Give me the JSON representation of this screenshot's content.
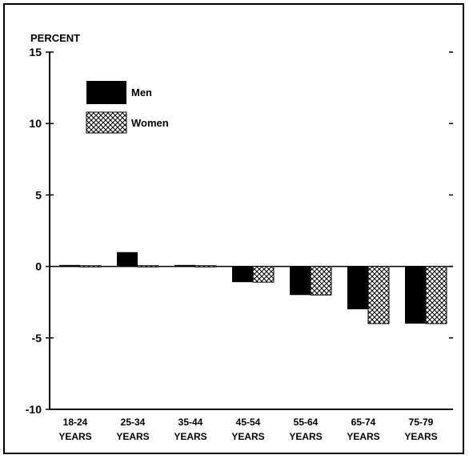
{
  "chart_data": {
    "type": "bar",
    "ylabel": "PERCENT",
    "ylim": [
      -10,
      15
    ],
    "yticks": [
      "15",
      "10",
      "5",
      "0",
      "-5",
      "-10"
    ],
    "ytick_values": [
      15,
      10,
      5,
      0,
      -5,
      -10
    ],
    "categories": [
      {
        "line1": "18-24",
        "line2": "YEARS"
      },
      {
        "line1": "25-34",
        "line2": "YEARS"
      },
      {
        "line1": "35-44",
        "line2": "YEARS"
      },
      {
        "line1": "45-54",
        "line2": "YEARS"
      },
      {
        "line1": "55-64",
        "line2": "YEARS"
      },
      {
        "line1": "65-74",
        "line2": "YEARS"
      },
      {
        "line1": "75-79",
        "line2": "YEARS"
      }
    ],
    "series": [
      {
        "name": "Men",
        "values": [
          0.1,
          1.0,
          0.1,
          -1.1,
          -2.0,
          -3.0,
          -4.0
        ],
        "fill": "#000000"
      },
      {
        "name": "Women",
        "values": [
          0.05,
          0.05,
          0.05,
          -1.1,
          -2.0,
          -4.0,
          -4.0
        ],
        "fill": "crosshatch"
      }
    ],
    "legend": "top-left",
    "grid": false
  }
}
